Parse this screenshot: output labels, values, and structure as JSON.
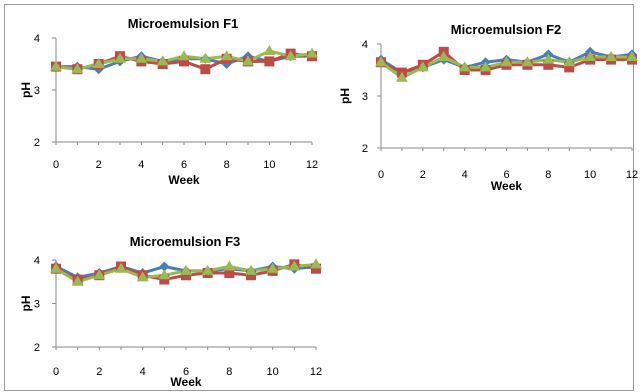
{
  "colors": {
    "s1": "#4a7ebb",
    "s2": "#be4b48",
    "s3": "#98b954"
  },
  "chart_data": [
    {
      "type": "line",
      "title": "Microemulsion F1",
      "xlabel": "Week",
      "ylabel": "pH",
      "x": [
        0,
        1,
        2,
        3,
        4,
        5,
        6,
        7,
        8,
        9,
        10,
        11,
        12
      ],
      "xticks": [
        0,
        2,
        4,
        6,
        8,
        10,
        12
      ],
      "yticks": [
        2,
        3,
        4
      ],
      "xlim": [
        0,
        12
      ],
      "ylim": [
        2,
        4
      ],
      "series": [
        {
          "values": [
            3.45,
            3.45,
            3.4,
            3.55,
            3.65,
            3.55,
            3.6,
            3.6,
            3.5,
            3.65,
            3.55,
            3.65,
            3.65
          ]
        },
        {
          "values": [
            3.45,
            3.4,
            3.5,
            3.65,
            3.55,
            3.5,
            3.55,
            3.4,
            3.6,
            3.55,
            3.55,
            3.7,
            3.65
          ]
        },
        {
          "values": [
            3.45,
            3.4,
            3.5,
            3.6,
            3.6,
            3.55,
            3.65,
            3.6,
            3.65,
            3.55,
            3.75,
            3.65,
            3.7
          ]
        }
      ]
    },
    {
      "type": "line",
      "title": "Microemulsion F2",
      "xlabel": "Week",
      "ylabel": "pH",
      "x": [
        0,
        1,
        2,
        3,
        4,
        5,
        6,
        7,
        8,
        9,
        10,
        11,
        12
      ],
      "xticks": [
        0,
        2,
        4,
        6,
        8,
        10,
        12
      ],
      "yticks": [
        2,
        3,
        4
      ],
      "xlim": [
        0,
        12
      ],
      "ylim": [
        2,
        4
      ],
      "series": [
        {
          "values": [
            3.7,
            3.45,
            3.55,
            3.7,
            3.55,
            3.65,
            3.7,
            3.65,
            3.8,
            3.65,
            3.85,
            3.75,
            3.8
          ]
        },
        {
          "values": [
            3.65,
            3.45,
            3.6,
            3.85,
            3.5,
            3.5,
            3.6,
            3.6,
            3.6,
            3.55,
            3.7,
            3.7,
            3.7
          ]
        },
        {
          "values": [
            3.65,
            3.35,
            3.55,
            3.75,
            3.55,
            3.55,
            3.65,
            3.65,
            3.7,
            3.65,
            3.75,
            3.75,
            3.75
          ]
        }
      ]
    },
    {
      "type": "line",
      "title": "Microemulsion F3",
      "xlabel": "Week",
      "ylabel": "pH",
      "x": [
        0,
        1,
        2,
        3,
        4,
        5,
        6,
        7,
        8,
        9,
        10,
        11,
        12
      ],
      "xticks": [
        0,
        2,
        4,
        6,
        8,
        10,
        12
      ],
      "yticks": [
        2,
        3,
        4
      ],
      "xlim": [
        0,
        12
      ],
      "ylim": [
        2,
        4
      ],
      "series": [
        {
          "values": [
            3.85,
            3.6,
            3.7,
            3.85,
            3.7,
            3.85,
            3.75,
            3.75,
            3.8,
            3.75,
            3.85,
            3.8,
            3.85
          ]
        },
        {
          "values": [
            3.8,
            3.55,
            3.65,
            3.85,
            3.65,
            3.55,
            3.65,
            3.7,
            3.7,
            3.65,
            3.75,
            3.9,
            3.8
          ]
        },
        {
          "values": [
            3.8,
            3.5,
            3.65,
            3.8,
            3.6,
            3.65,
            3.75,
            3.75,
            3.85,
            3.75,
            3.8,
            3.85,
            3.9
          ]
        }
      ]
    }
  ]
}
